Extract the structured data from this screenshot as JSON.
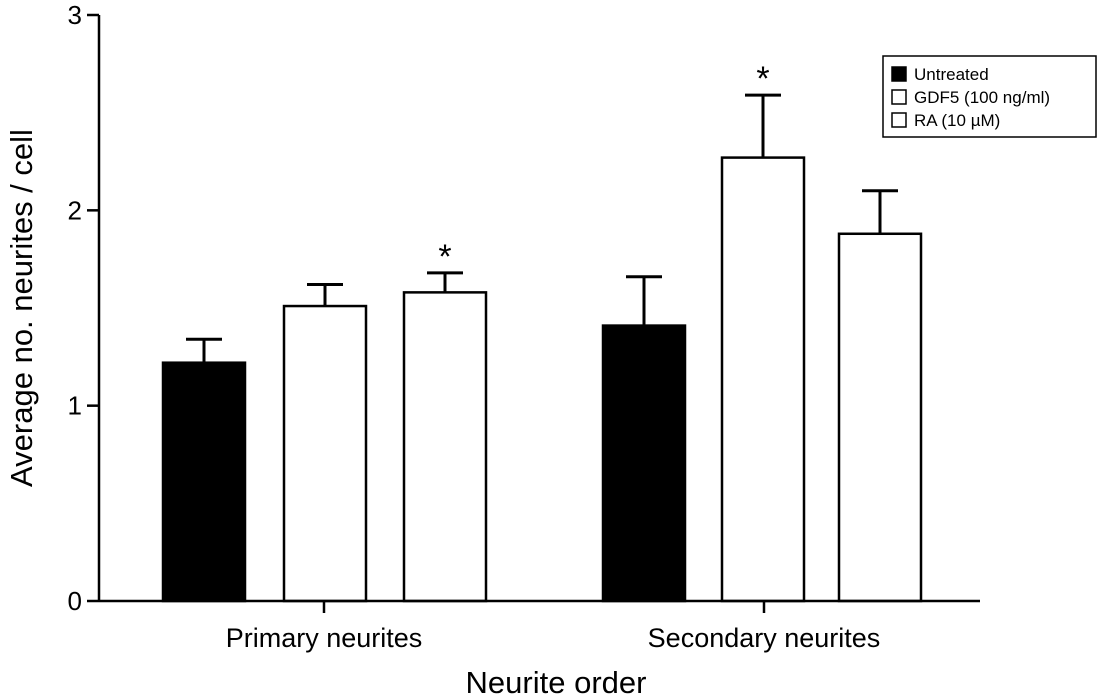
{
  "chart_data": {
    "type": "bar",
    "title": "",
    "xlabel": "Neurite order",
    "ylabel": "Average no. neurites / cell",
    "ylim": [
      0,
      3
    ],
    "yticks": [
      "0",
      "1",
      "2",
      "3"
    ],
    "categories": [
      "Primary neurites",
      "Secondary neurites"
    ],
    "series": [
      {
        "name": "Untreated",
        "color": "#000000",
        "values": [
          1.22,
          1.41
        ],
        "errors": [
          0.12,
          0.25
        ],
        "significant": [
          false,
          false
        ]
      },
      {
        "name": "GDF5 (100 ng/ml)",
        "color": "#ffffff",
        "values": [
          1.51,
          2.27
        ],
        "errors": [
          0.11,
          0.32
        ],
        "significant": [
          false,
          true
        ]
      },
      {
        "name": "RA (10 µM)",
        "color": "#ffffff",
        "values": [
          1.58,
          1.88
        ],
        "errors": [
          0.1,
          0.22
        ],
        "significant": [
          true,
          false
        ]
      }
    ],
    "significance_marker": "*",
    "legend_position": "top-right",
    "grid": false
  }
}
